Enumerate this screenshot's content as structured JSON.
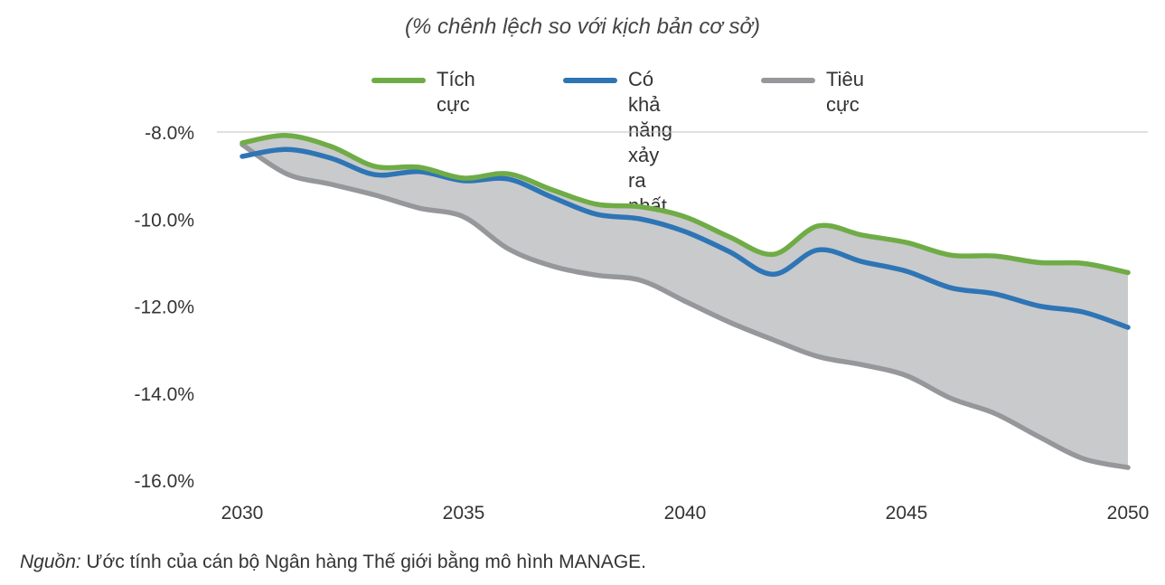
{
  "chart_data": {
    "type": "line",
    "subtitle": "(% chênh lệch so với kịch bản cơ sở)",
    "x": [
      2030,
      2031,
      2032,
      2033,
      2034,
      2035,
      2036,
      2037,
      2038,
      2039,
      2040,
      2041,
      2042,
      2043,
      2044,
      2045,
      2046,
      2047,
      2048,
      2049,
      2050
    ],
    "series": [
      {
        "name": "Tích cực",
        "color": "#6fac46",
        "values": [
          -8.25,
          -8.08,
          -8.33,
          -8.79,
          -8.81,
          -9.06,
          -8.96,
          -9.33,
          -9.66,
          -9.72,
          -9.95,
          -10.41,
          -10.81,
          -10.16,
          -10.37,
          -10.54,
          -10.83,
          -10.85,
          -11.0,
          -11.02,
          -11.23
        ]
      },
      {
        "name": "Có khả năng\nxảy ra nhất",
        "color": "#2e75b6",
        "values": [
          -8.56,
          -8.4,
          -8.6,
          -8.98,
          -8.91,
          -9.12,
          -9.08,
          -9.5,
          -9.89,
          -10.0,
          -10.29,
          -10.75,
          -11.27,
          -10.71,
          -10.98,
          -11.2,
          -11.58,
          -11.72,
          -12.0,
          -12.14,
          -12.49
        ]
      },
      {
        "name": "Tiêu cực",
        "color": "#96979a",
        "values": [
          -8.29,
          -8.96,
          -9.2,
          -9.45,
          -9.75,
          -9.95,
          -10.68,
          -11.08,
          -11.29,
          -11.41,
          -11.89,
          -12.37,
          -12.78,
          -13.16,
          -13.35,
          -13.6,
          -14.12,
          -14.47,
          -15.01,
          -15.51,
          -15.71
        ]
      }
    ],
    "band_fill_color": "#c9cacc",
    "ylim": [
      -16,
      -8
    ],
    "yticks": [
      "-8.0%",
      "-10.0%",
      "-12.0%",
      "-14.0%",
      "-16.0%"
    ],
    "ytick_values": [
      -8,
      -10,
      -12,
      -14,
      -16
    ],
    "xticks": [
      "2030",
      "2035",
      "2040",
      "2045",
      "2050"
    ],
    "xtick_values": [
      2030,
      2035,
      2040,
      2045,
      2050
    ],
    "legend_position": "top-center",
    "grid": "top line at -8.0% only"
  },
  "source": {
    "label": "Nguồn:",
    "text": " Ước tính của cán bộ Ngân hàng Thế giới bằng mô hình MANAGE."
  }
}
